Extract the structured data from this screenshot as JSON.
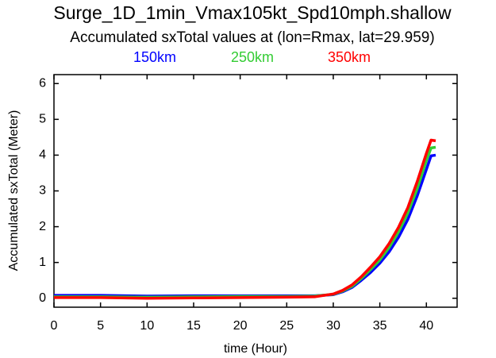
{
  "chart_data": {
    "type": "line",
    "title": "Surge_1D_1min_Vmax105kt_Spd10mph.shallow",
    "subtitle": "Accumulated sxTotal values at (lon=Rmax, lat=29.959)",
    "x_label": "time (Hour)",
    "y_label": "Accumulated sxTotal (Meter)",
    "x": [
      0,
      5,
      10,
      15,
      20,
      25,
      28,
      30,
      31,
      32,
      33,
      34,
      35,
      36,
      37,
      38,
      39,
      40,
      40.5,
      41
    ],
    "series": [
      {
        "name": "150km",
        "color": "#0000ff",
        "values": [
          0.08,
          0.08,
          0.06,
          0.07,
          0.07,
          0.07,
          0.07,
          0.1,
          0.18,
          0.3,
          0.5,
          0.72,
          0.98,
          1.3,
          1.7,
          2.2,
          2.85,
          3.6,
          3.98,
          4.0
        ]
      },
      {
        "name": "250km",
        "color": "#33cc33",
        "values": [
          0.04,
          0.04,
          0.03,
          0.04,
          0.05,
          0.05,
          0.06,
          0.11,
          0.2,
          0.33,
          0.55,
          0.8,
          1.07,
          1.42,
          1.85,
          2.38,
          3.05,
          3.85,
          4.2,
          4.22
        ]
      },
      {
        "name": "350km",
        "color": "#ff0000",
        "values": [
          0.02,
          0.02,
          0.0,
          0.01,
          0.02,
          0.03,
          0.04,
          0.12,
          0.22,
          0.37,
          0.6,
          0.87,
          1.16,
          1.53,
          1.98,
          2.53,
          3.25,
          4.05,
          4.42,
          4.4
        ]
      }
    ],
    "xlim": [
      0,
      43.3
    ],
    "ylim": [
      -0.25,
      6.25
    ],
    "xticks": [
      0,
      5,
      10,
      15,
      20,
      25,
      30,
      35,
      40
    ],
    "yticks": [
      0,
      1,
      2,
      3,
      4,
      5,
      6
    ]
  }
}
